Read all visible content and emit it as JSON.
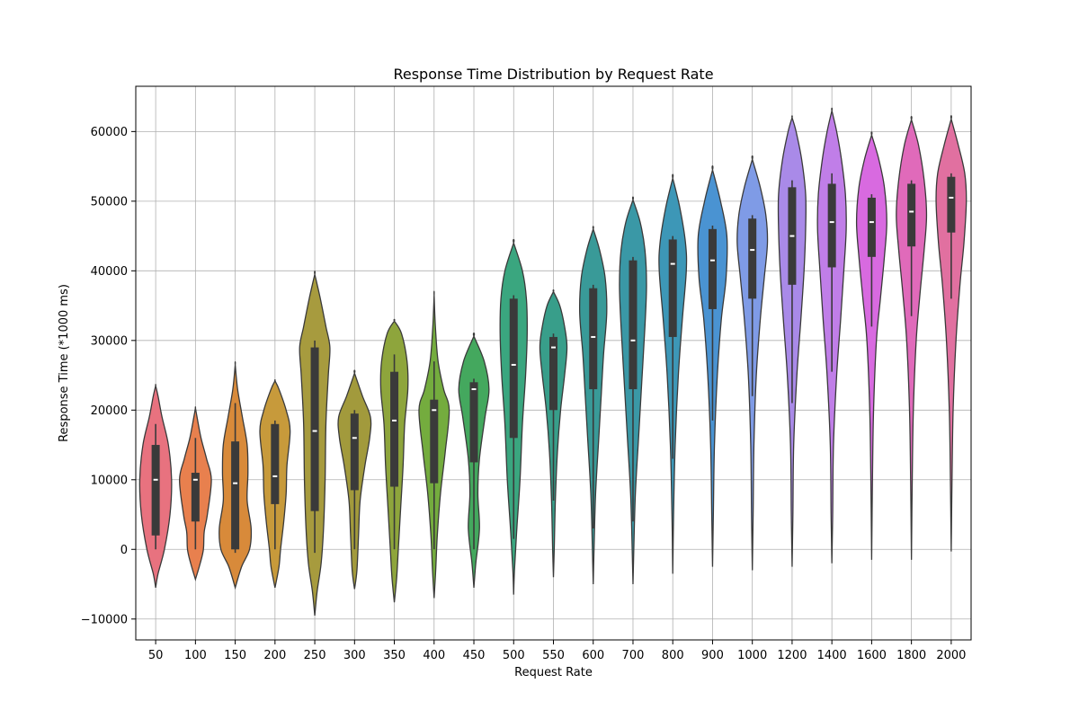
{
  "chart_data": {
    "type": "violin",
    "title": "Response Time Distribution by Request Rate",
    "xlabel": "Request Rate",
    "ylabel": "Response Time (*1000 ms)",
    "ylim": [
      -13000,
      66500
    ],
    "yticks": [
      -10000,
      0,
      10000,
      20000,
      30000,
      40000,
      50000,
      60000
    ],
    "ytick_labels": [
      "−10000",
      "0",
      "10000",
      "20000",
      "30000",
      "40000",
      "50000",
      "60000"
    ],
    "grid": true,
    "categories": [
      "50",
      "100",
      "150",
      "200",
      "250",
      "300",
      "350",
      "400",
      "450",
      "500",
      "550",
      "600",
      "700",
      "800",
      "900",
      "1000",
      "1200",
      "1400",
      "1600",
      "1800",
      "2000"
    ],
    "violins": [
      {
        "category": "50",
        "color": "#e8727f",
        "min": -5500,
        "max": 23500,
        "q1": 2000,
        "median": 10000,
        "q3": 15000,
        "whisker_low": 0,
        "whisker_high": 18000,
        "profile": [
          [
            -5500,
            0
          ],
          [
            -3500,
            0.15
          ],
          [
            0,
            0.55
          ],
          [
            5000,
            0.9
          ],
          [
            10000,
            1.0
          ],
          [
            15000,
            0.8
          ],
          [
            19000,
            0.4
          ],
          [
            22000,
            0.15
          ],
          [
            23500,
            0
          ]
        ]
      },
      {
        "category": "100",
        "color": "#e8804e",
        "min": -4300,
        "max": 20300,
        "q1": 4000,
        "median": 10000,
        "q3": 11000,
        "whisker_low": 0,
        "whisker_high": 16000,
        "profile": [
          [
            -4300,
            0
          ],
          [
            -2000,
            0.3
          ],
          [
            0,
            0.5
          ],
          [
            2500,
            0.55
          ],
          [
            5000,
            0.75
          ],
          [
            10000,
            1.0
          ],
          [
            13000,
            0.7
          ],
          [
            16000,
            0.35
          ],
          [
            19000,
            0.1
          ],
          [
            20300,
            0
          ]
        ]
      },
      {
        "category": "150",
        "color": "#d88a3a",
        "min": -5500,
        "max": 26500,
        "q1": 0,
        "median": 9500,
        "q3": 15500,
        "whisker_low": -500,
        "whisker_high": 21000,
        "profile": [
          [
            -5500,
            0
          ],
          [
            -2500,
            0.4
          ],
          [
            0,
            0.9
          ],
          [
            3000,
            1.0
          ],
          [
            7000,
            0.75
          ],
          [
            11000,
            0.8
          ],
          [
            15000,
            0.75
          ],
          [
            19000,
            0.45
          ],
          [
            23000,
            0.15
          ],
          [
            26500,
            0
          ]
        ]
      },
      {
        "category": "200",
        "color": "#c79a3b",
        "min": -5500,
        "max": 24200,
        "q1": 6500,
        "median": 10500,
        "q3": 18000,
        "whisker_low": 0,
        "whisker_high": 18500,
        "profile": [
          [
            -5500,
            0
          ],
          [
            -2500,
            0.25
          ],
          [
            0,
            0.35
          ],
          [
            4000,
            0.55
          ],
          [
            8000,
            0.7
          ],
          [
            12000,
            0.75
          ],
          [
            17000,
            0.95
          ],
          [
            20000,
            0.7
          ],
          [
            23000,
            0.25
          ],
          [
            24200,
            0
          ]
        ]
      },
      {
        "category": "250",
        "color": "#a79b3e",
        "min": -9500,
        "max": 39500,
        "q1": 5500,
        "median": 17000,
        "q3": 29000,
        "whisker_low": -500,
        "whisker_high": 30000,
        "profile": [
          [
            -9500,
            0
          ],
          [
            -6000,
            0.15
          ],
          [
            -2000,
            0.4
          ],
          [
            3000,
            0.55
          ],
          [
            10000,
            0.65
          ],
          [
            18000,
            0.7
          ],
          [
            25000,
            0.85
          ],
          [
            29000,
            0.95
          ],
          [
            32000,
            0.7
          ],
          [
            36000,
            0.35
          ],
          [
            39500,
            0
          ]
        ]
      },
      {
        "category": "300",
        "color": "#a29a3c",
        "min": -5700,
        "max": 25300,
        "q1": 8500,
        "median": 16000,
        "q3": 19500,
        "whisker_low": 0,
        "whisker_high": 20000,
        "profile": [
          [
            -5700,
            0
          ],
          [
            -3000,
            0.15
          ],
          [
            2000,
            0.25
          ],
          [
            7000,
            0.35
          ],
          [
            12000,
            0.65
          ],
          [
            16000,
            0.95
          ],
          [
            19000,
            1.0
          ],
          [
            22000,
            0.5
          ],
          [
            25300,
            0
          ]
        ]
      },
      {
        "category": "350",
        "color": "#8ea53c",
        "min": -7600,
        "max": 32800,
        "q1": 9000,
        "median": 18500,
        "q3": 25500,
        "whisker_low": 0,
        "whisker_high": 28000,
        "profile": [
          [
            -7600,
            0
          ],
          [
            -4000,
            0.15
          ],
          [
            0,
            0.25
          ],
          [
            6000,
            0.4
          ],
          [
            12000,
            0.55
          ],
          [
            18000,
            0.65
          ],
          [
            23000,
            0.85
          ],
          [
            27000,
            0.8
          ],
          [
            31000,
            0.45
          ],
          [
            32800,
            0
          ]
        ]
      },
      {
        "category": "400",
        "color": "#74ac3e",
        "min": -7000,
        "max": 36500,
        "q1": 9500,
        "median": 20000,
        "q3": 21500,
        "whisker_low": 0,
        "whisker_high": 27000,
        "profile": [
          [
            -7000,
            0
          ],
          [
            -3000,
            0.1
          ],
          [
            2000,
            0.2
          ],
          [
            8000,
            0.4
          ],
          [
            14000,
            0.7
          ],
          [
            20000,
            0.95
          ],
          [
            23000,
            0.6
          ],
          [
            27000,
            0.25
          ],
          [
            32000,
            0.08
          ],
          [
            36500,
            0
          ]
        ]
      },
      {
        "category": "450",
        "color": "#44a85e",
        "min": -5500,
        "max": 30600,
        "q1": 12500,
        "median": 23000,
        "q3": 24000,
        "whisker_low": 0,
        "whisker_high": 24500,
        "profile": [
          [
            -5500,
            0
          ],
          [
            -2000,
            0.12
          ],
          [
            3000,
            0.35
          ],
          [
            8000,
            0.25
          ],
          [
            13000,
            0.35
          ],
          [
            19000,
            0.7
          ],
          [
            23000,
            0.95
          ],
          [
            27000,
            0.65
          ],
          [
            30600,
            0
          ]
        ]
      },
      {
        "category": "500",
        "color": "#3aa67f",
        "min": -6500,
        "max": 44000,
        "q1": 16000,
        "median": 26500,
        "q3": 36000,
        "whisker_low": 1500,
        "whisker_high": 36500,
        "profile": [
          [
            -6500,
            0
          ],
          [
            -3000,
            0.05
          ],
          [
            3000,
            0.2
          ],
          [
            10000,
            0.4
          ],
          [
            18000,
            0.55
          ],
          [
            25000,
            0.75
          ],
          [
            31000,
            0.85
          ],
          [
            36000,
            0.8
          ],
          [
            40000,
            0.55
          ],
          [
            44000,
            0
          ]
        ]
      },
      {
        "category": "550",
        "color": "#389e8a",
        "min": -4000,
        "max": 37000,
        "q1": 20000,
        "median": 29000,
        "q3": 30500,
        "whisker_low": 7000,
        "whisker_high": 31000,
        "profile": [
          [
            -4000,
            0
          ],
          [
            0,
            0.05
          ],
          [
            7000,
            0.12
          ],
          [
            14000,
            0.25
          ],
          [
            20000,
            0.45
          ],
          [
            25000,
            0.7
          ],
          [
            29000,
            0.85
          ],
          [
            32000,
            0.7
          ],
          [
            35000,
            0.4
          ],
          [
            37000,
            0
          ]
        ]
      },
      {
        "category": "600",
        "color": "#399a98",
        "min": -5000,
        "max": 46000,
        "q1": 23000,
        "median": 30500,
        "q3": 37500,
        "whisker_low": 3000,
        "whisker_high": 38000,
        "profile": [
          [
            -5000,
            0
          ],
          [
            0,
            0.05
          ],
          [
            8000,
            0.15
          ],
          [
            16000,
            0.35
          ],
          [
            22000,
            0.5
          ],
          [
            28000,
            0.65
          ],
          [
            34000,
            0.85
          ],
          [
            39000,
            0.75
          ],
          [
            43000,
            0.4
          ],
          [
            46000,
            0
          ]
        ]
      },
      {
        "category": "700",
        "color": "#3a98a6",
        "min": -5000,
        "max": 50200,
        "q1": 23000,
        "median": 30000,
        "q3": 41500,
        "whisker_low": 4000,
        "whisker_high": 42000,
        "profile": [
          [
            -5000,
            0
          ],
          [
            0,
            0.05
          ],
          [
            8000,
            0.15
          ],
          [
            16000,
            0.35
          ],
          [
            24000,
            0.55
          ],
          [
            32000,
            0.75
          ],
          [
            38000,
            0.85
          ],
          [
            43000,
            0.75
          ],
          [
            47000,
            0.45
          ],
          [
            50200,
            0
          ]
        ]
      },
      {
        "category": "800",
        "color": "#3d97b7",
        "min": -3500,
        "max": 53300,
        "q1": 30500,
        "median": 41000,
        "q3": 44500,
        "whisker_low": 13000,
        "whisker_high": 45000,
        "profile": [
          [
            -3500,
            0
          ],
          [
            5000,
            0.05
          ],
          [
            15000,
            0.15
          ],
          [
            25000,
            0.35
          ],
          [
            33000,
            0.6
          ],
          [
            40000,
            0.85
          ],
          [
            44000,
            0.8
          ],
          [
            49000,
            0.45
          ],
          [
            53300,
            0
          ]
        ]
      },
      {
        "category": "900",
        "color": "#4a93d2",
        "min": -2500,
        "max": 54500,
        "q1": 34500,
        "median": 41500,
        "q3": 46000,
        "whisker_low": 18500,
        "whisker_high": 46500,
        "profile": [
          [
            -2500,
            0
          ],
          [
            5000,
            0.05
          ],
          [
            15000,
            0.12
          ],
          [
            25000,
            0.3
          ],
          [
            33000,
            0.55
          ],
          [
            39000,
            0.85
          ],
          [
            45000,
            0.9
          ],
          [
            50000,
            0.5
          ],
          [
            54500,
            0
          ]
        ]
      },
      {
        "category": "1000",
        "color": "#7f9be6",
        "min": -3000,
        "max": 56000,
        "q1": 36000,
        "median": 43000,
        "q3": 47500,
        "whisker_low": 22000,
        "whisker_high": 48000,
        "profile": [
          [
            -3000,
            0
          ],
          [
            5000,
            0.05
          ],
          [
            15000,
            0.1
          ],
          [
            25000,
            0.25
          ],
          [
            33000,
            0.5
          ],
          [
            39000,
            0.75
          ],
          [
            44000,
            0.95
          ],
          [
            48000,
            0.85
          ],
          [
            52000,
            0.5
          ],
          [
            56000,
            0
          ]
        ]
      },
      {
        "category": "1200",
        "color": "#a98ae8",
        "min": -2500,
        "max": 62000,
        "q1": 38000,
        "median": 45000,
        "q3": 52000,
        "whisker_low": 21000,
        "whisker_high": 53000,
        "profile": [
          [
            -2500,
            0
          ],
          [
            5000,
            0.05
          ],
          [
            15000,
            0.1
          ],
          [
            25000,
            0.3
          ],
          [
            33000,
            0.55
          ],
          [
            40000,
            0.75
          ],
          [
            46000,
            0.85
          ],
          [
            51000,
            0.85
          ],
          [
            56000,
            0.6
          ],
          [
            60000,
            0.25
          ],
          [
            62000,
            0
          ]
        ]
      },
      {
        "category": "1400",
        "color": "#c07ee8",
        "min": -2000,
        "max": 63000,
        "q1": 40500,
        "median": 47000,
        "q3": 52500,
        "whisker_low": 25500,
        "whisker_high": 54000,
        "profile": [
          [
            -2000,
            0
          ],
          [
            5000,
            0.05
          ],
          [
            15000,
            0.1
          ],
          [
            25000,
            0.3
          ],
          [
            33000,
            0.55
          ],
          [
            40000,
            0.75
          ],
          [
            46000,
            0.9
          ],
          [
            51000,
            0.85
          ],
          [
            56000,
            0.6
          ],
          [
            60000,
            0.3
          ],
          [
            63000,
            0
          ]
        ]
      },
      {
        "category": "1600",
        "color": "#d86ae0",
        "min": -1500,
        "max": 59500,
        "q1": 42000,
        "median": 47000,
        "q3": 50500,
        "whisker_low": 32000,
        "whisker_high": 51000,
        "profile": [
          [
            -1500,
            0
          ],
          [
            10000,
            0.05
          ],
          [
            20000,
            0.12
          ],
          [
            30000,
            0.3
          ],
          [
            36000,
            0.55
          ],
          [
            42000,
            0.8
          ],
          [
            47000,
            0.95
          ],
          [
            52000,
            0.8
          ],
          [
            56000,
            0.45
          ],
          [
            59500,
            0
          ]
        ]
      },
      {
        "category": "1800",
        "color": "#e06aba",
        "min": -1500,
        "max": 61700,
        "q1": 43500,
        "median": 48500,
        "q3": 52500,
        "whisker_low": 33500,
        "whisker_high": 53000,
        "profile": [
          [
            -1500,
            0
          ],
          [
            10000,
            0.05
          ],
          [
            20000,
            0.12
          ],
          [
            30000,
            0.3
          ],
          [
            37000,
            0.55
          ],
          [
            43000,
            0.8
          ],
          [
            48000,
            0.95
          ],
          [
            53000,
            0.8
          ],
          [
            58000,
            0.45
          ],
          [
            61700,
            0
          ]
        ]
      },
      {
        "category": "2000",
        "color": "#e170a0",
        "min": -300,
        "max": 61800,
        "q1": 45500,
        "median": 50500,
        "q3": 53500,
        "whisker_low": 36000,
        "whisker_high": 54000,
        "profile": [
          [
            -300,
            0
          ],
          [
            10000,
            0.05
          ],
          [
            20000,
            0.12
          ],
          [
            30000,
            0.3
          ],
          [
            38000,
            0.55
          ],
          [
            44000,
            0.8
          ],
          [
            50000,
            0.95
          ],
          [
            54000,
            0.85
          ],
          [
            58000,
            0.45
          ],
          [
            61800,
            0
          ]
        ]
      }
    ]
  }
}
